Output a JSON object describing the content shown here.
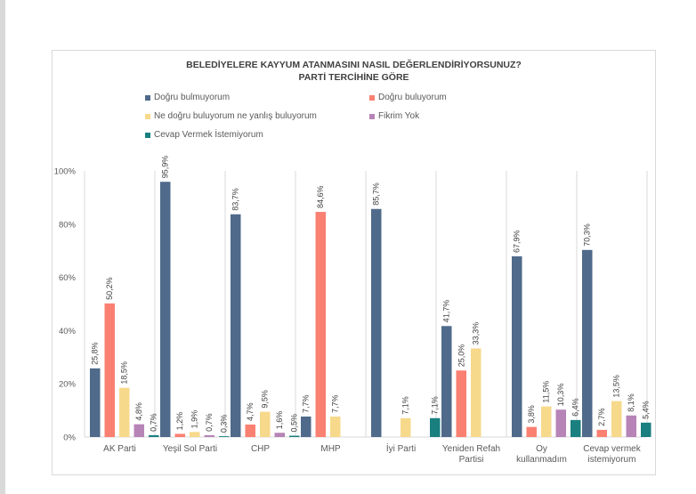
{
  "chart_data": {
    "type": "bar",
    "title": "BELEDİYELERE KAYYUM ATANMASINI NASIL DEĞERLENDİRİYORSUNUZ?",
    "subtitle": "PARTİ TERCİHİNE GÖRE",
    "categories": [
      [
        "AK Parti"
      ],
      [
        "Yeşil Sol Parti"
      ],
      [
        "CHP"
      ],
      [
        "MHP"
      ],
      [
        "İyi Parti"
      ],
      [
        "Yeniden Refah",
        "Partisi"
      ],
      [
        "Oy",
        "kullanmadım"
      ],
      [
        "Cevap vermek",
        "istemiyorum"
      ]
    ],
    "ylim": [
      0,
      100
    ],
    "yticks": [
      "0%",
      "20%",
      "40%",
      "60%",
      "80%",
      "100%"
    ],
    "legend_position": "top",
    "grid": false,
    "series": [
      {
        "name": "Doğru bulmuyorum",
        "color": "#4f6a8a",
        "values": [
          25.8,
          95.9,
          83.7,
          7.7,
          85.7,
          41.7,
          67.9,
          70.3
        ],
        "labels": [
          "25,8%",
          "95,9%",
          "83,7%",
          "7,7%",
          "85,7%",
          "41,7%",
          "67,9%",
          "70,3%"
        ]
      },
      {
        "name": "Doğru buluyorum",
        "color": "#fa8072",
        "values": [
          50.2,
          1.2,
          4.7,
          84.6,
          null,
          25.0,
          3.8,
          2.7
        ],
        "labels": [
          "50,2%",
          "1,2%",
          "4,7%",
          "84,6%",
          "",
          "25,0%",
          "3,8%",
          "2,7%"
        ]
      },
      {
        "name": "Ne doğru buluyorum ne yanlış buluyorum",
        "color": "#f7d98c",
        "values": [
          18.5,
          1.9,
          9.5,
          7.7,
          7.1,
          33.3,
          11.5,
          13.5
        ],
        "labels": [
          "18,5%",
          "1,9%",
          "9,5%",
          "7,7%",
          "7,1%",
          "33,3%",
          "11,5%",
          "13,5%"
        ]
      },
      {
        "name": "Fikrim Yok",
        "color": "#b784b7",
        "values": [
          4.8,
          0.7,
          1.6,
          null,
          null,
          null,
          10.3,
          8.1
        ],
        "labels": [
          "4,8%",
          "0,7%",
          "1,6%",
          "",
          "",
          "",
          "10,3%",
          "8,1%"
        ]
      },
      {
        "name": "Cevap Vermek İstemiyorum",
        "color": "#1a7f7f",
        "values": [
          0.7,
          0.3,
          0.5,
          null,
          7.1,
          null,
          6.4,
          5.4
        ],
        "labels": [
          "0,7%",
          "0,3%",
          "0,5%",
          "",
          "7,1%",
          "",
          "6,4%",
          "5,4%"
        ]
      }
    ]
  }
}
